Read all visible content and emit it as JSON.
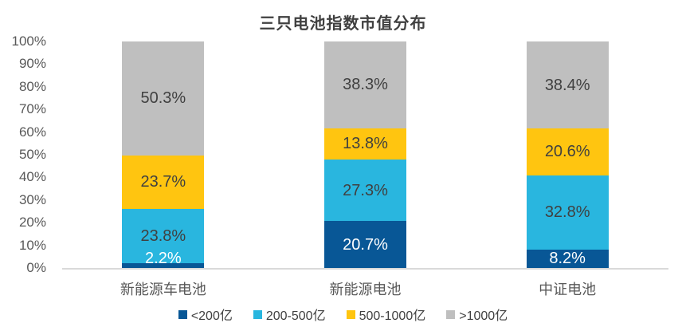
{
  "chart_data": {
    "type": "bar",
    "variant": "stacked-percent",
    "title": "三只电池指数市值分布",
    "categories": [
      "新能源车电池",
      "新能源电池",
      "中证电池"
    ],
    "series": [
      {
        "name": "<200亿",
        "color": "#085796",
        "label_color": "#FFFFFF",
        "values": [
          2.2,
          20.7,
          8.2
        ]
      },
      {
        "name": "200-500亿",
        "color": "#29B6DF",
        "label_color": "#404040",
        "values": [
          23.8,
          27.3,
          32.8
        ]
      },
      {
        "name": "500-1000亿",
        "color": "#FFC510",
        "label_color": "#404040",
        "values": [
          23.7,
          13.8,
          20.6
        ]
      },
      {
        "name": ">1000亿",
        "color": "#BFBFBF",
        "label_color": "#404040",
        "values": [
          50.3,
          38.3,
          38.4
        ]
      }
    ],
    "y_axis": {
      "ticks": [
        "0%",
        "10%",
        "20%",
        "30%",
        "40%",
        "50%",
        "60%",
        "70%",
        "80%",
        "90%",
        "100%"
      ],
      "min": 0,
      "max": 100
    },
    "value_suffix": "%",
    "grid": false,
    "legend_position": "bottom",
    "colors": {
      "axis_line": "#D9D9D9",
      "tick_label": "#595959",
      "category_label": "#595959",
      "title": "#404040",
      "legend_label": "#404040",
      "background": "#FFFFFF"
    }
  }
}
